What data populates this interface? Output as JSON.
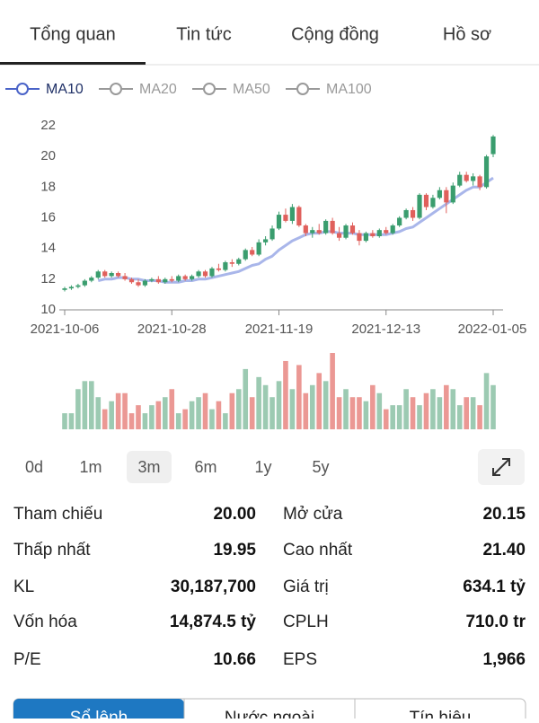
{
  "tabs": {
    "items": [
      "Tổng quan",
      "Tin tức",
      "Cộng đồng",
      "Hồ sơ"
    ],
    "active": 0
  },
  "legend": [
    {
      "name": "MA10",
      "active": true
    },
    {
      "name": "MA20",
      "active": false
    },
    {
      "name": "MA50",
      "active": false
    },
    {
      "name": "MA100",
      "active": false
    }
  ],
  "chart_data": [
    {
      "type": "candlestick",
      "categories": [
        "2021-10-06",
        null,
        null,
        null,
        null,
        null,
        null,
        null,
        null,
        null,
        null,
        null,
        null,
        null,
        null,
        null,
        "2021-10-28",
        null,
        null,
        null,
        null,
        null,
        null,
        null,
        null,
        null,
        null,
        null,
        null,
        null,
        null,
        null,
        "2021-11-19",
        null,
        null,
        null,
        null,
        null,
        null,
        null,
        null,
        null,
        null,
        null,
        null,
        null,
        null,
        null,
        "2021-12-13",
        null,
        null,
        null,
        null,
        null,
        null,
        null,
        null,
        null,
        null,
        null,
        null,
        null,
        null,
        null,
        "2022-01-05"
      ],
      "open": [
        11.3,
        11.4,
        11.5,
        11.6,
        11.9,
        12.1,
        12.5,
        12.2,
        12.4,
        12.2,
        12.0,
        11.8,
        11.6,
        11.9,
        12.0,
        11.8,
        12.0,
        11.9,
        12.2,
        12.0,
        12.2,
        12.5,
        12.2,
        12.7,
        12.6,
        13.1,
        13.0,
        13.3,
        13.9,
        13.6,
        14.4,
        14.6,
        15.3,
        16.2,
        15.8,
        16.7,
        15.5,
        15.0,
        15.2,
        15.0,
        15.8,
        15.0,
        14.7,
        15.5,
        15.0,
        14.5,
        15.0,
        14.8,
        15.2,
        15.0,
        15.5,
        16.0,
        16.5,
        16.0,
        17.5,
        16.7,
        17.3,
        17.8,
        17.0,
        18.1,
        18.8,
        18.4,
        18.7,
        18.0,
        20.15
      ],
      "high": [
        11.5,
        11.6,
        11.7,
        12.0,
        12.2,
        12.6,
        12.6,
        12.5,
        12.5,
        12.4,
        12.1,
        12.0,
        12.0,
        12.1,
        12.2,
        12.1,
        12.2,
        12.3,
        12.3,
        12.3,
        12.6,
        12.6,
        12.8,
        13.0,
        13.2,
        13.3,
        13.4,
        14.0,
        14.1,
        14.6,
        14.8,
        15.5,
        16.4,
        16.6,
        16.9,
        16.8,
        15.6,
        15.4,
        15.6,
        15.9,
        16.0,
        15.4,
        15.6,
        15.7,
        15.2,
        15.1,
        15.2,
        15.3,
        15.4,
        15.6,
        16.1,
        16.6,
        16.7,
        17.6,
        17.6,
        17.5,
        18.0,
        18.0,
        18.3,
        19.0,
        19.0,
        18.9,
        18.8,
        20.1,
        21.4
      ],
      "low": [
        11.2,
        11.3,
        11.4,
        11.5,
        11.8,
        12.0,
        12.1,
        12.1,
        12.1,
        11.9,
        11.7,
        11.5,
        11.5,
        11.8,
        11.7,
        11.7,
        11.8,
        11.8,
        11.9,
        11.9,
        12.1,
        12.1,
        12.1,
        12.5,
        12.5,
        12.8,
        12.9,
        13.2,
        13.5,
        13.5,
        14.2,
        14.5,
        15.2,
        15.7,
        15.6,
        15.4,
        14.8,
        14.7,
        14.9,
        14.9,
        14.9,
        14.5,
        14.6,
        14.9,
        14.2,
        14.4,
        14.7,
        14.7,
        14.9,
        14.9,
        15.4,
        15.9,
        15.8,
        15.9,
        16.5,
        16.6,
        17.2,
        16.3,
        16.9,
        18.0,
        18.3,
        18.1,
        17.8,
        17.9,
        19.95
      ],
      "close": [
        11.4,
        11.5,
        11.6,
        11.9,
        12.1,
        12.5,
        12.2,
        12.4,
        12.2,
        12.0,
        11.8,
        11.6,
        11.9,
        12.0,
        11.8,
        12.0,
        11.9,
        12.2,
        12.0,
        12.2,
        12.5,
        12.2,
        12.7,
        12.6,
        13.1,
        13.0,
        13.3,
        13.9,
        13.6,
        14.4,
        14.6,
        15.3,
        16.2,
        15.8,
        16.7,
        15.5,
        15.0,
        15.2,
        15.0,
        15.8,
        15.0,
        14.7,
        15.5,
        15.0,
        14.5,
        15.0,
        14.8,
        15.2,
        15.0,
        15.5,
        16.0,
        16.5,
        16.0,
        17.5,
        16.7,
        17.3,
        17.8,
        17.0,
        18.1,
        18.8,
        18.4,
        18.7,
        18.0,
        20.0,
        21.3
      ],
      "up_color": "#3a9d6e",
      "down_color": "#e0605c",
      "series": [
        {
          "name": "MA10",
          "color": "#a9b6ea",
          "values": [
            null,
            null,
            null,
            null,
            null,
            11.9,
            12.0,
            12.0,
            12.1,
            12.1,
            12.0,
            12.0,
            11.9,
            11.9,
            11.9,
            11.8,
            11.8,
            11.8,
            11.9,
            11.9,
            12.0,
            12.0,
            12.1,
            12.2,
            12.3,
            12.4,
            12.5,
            12.7,
            12.9,
            13.0,
            13.3,
            13.5,
            13.9,
            14.2,
            14.5,
            14.7,
            14.9,
            15.0,
            15.0,
            15.1,
            15.1,
            15.0,
            15.0,
            15.0,
            14.9,
            14.9,
            14.9,
            14.9,
            14.9,
            15.0,
            15.1,
            15.3,
            15.4,
            15.7,
            16.0,
            16.3,
            16.6,
            16.9,
            17.2,
            17.5,
            17.8,
            18.0,
            18.0,
            18.3,
            18.6
          ]
        }
      ],
      "ylim": [
        10,
        22
      ],
      "yticks": [
        10,
        12,
        14,
        16,
        18,
        20,
        22
      ]
    },
    {
      "type": "bar",
      "up_color": "#9ccab2",
      "down_color": "#eb9894",
      "values": [
        20,
        20,
        50,
        60,
        60,
        40,
        25,
        35,
        45,
        45,
        20,
        30,
        20,
        30,
        35,
        40,
        50,
        20,
        25,
        35,
        40,
        45,
        25,
        35,
        20,
        45,
        50,
        75,
        40,
        65,
        55,
        40,
        60,
        85,
        50,
        80,
        45,
        55,
        70,
        60,
        95,
        40,
        50,
        40,
        40,
        35,
        55,
        45,
        25,
        30,
        30,
        50,
        40,
        30,
        45,
        50,
        40,
        55,
        50,
        30,
        40,
        40,
        30,
        70,
        55
      ]
    }
  ],
  "periods": {
    "items": [
      "0d",
      "1m",
      "3m",
      "6m",
      "1y",
      "5y"
    ],
    "active": 2
  },
  "stats": [
    [
      {
        "label": "Tham chiếu",
        "value": "20.00",
        "color": "#e3b600"
      },
      {
        "label": "Mở cửa",
        "value": "20.15",
        "color": "#1faa2a"
      }
    ],
    [
      {
        "label": "Thấp nhất",
        "value": "19.95",
        "color": "#b3161c"
      },
      {
        "label": "Cao nhất",
        "value": "21.40",
        "color": "#e021d6"
      }
    ],
    [
      {
        "label": "KL",
        "value": "30,187,700"
      },
      {
        "label": "Giá trị",
        "value": "634.1 tỷ"
      }
    ],
    [
      {
        "label": "Vốn hóa",
        "value": "14,874.5 tỷ"
      },
      {
        "label": "CPLH",
        "value": "710.0 tr"
      }
    ],
    [
      {
        "label": "P/E",
        "value": "10.66"
      },
      {
        "label": "EPS",
        "value": "1,966"
      }
    ]
  ],
  "bottom_tabs": {
    "items": [
      "Sổ lệnh",
      "Nước ngoài",
      "Tín hiệu"
    ],
    "active": 0
  }
}
